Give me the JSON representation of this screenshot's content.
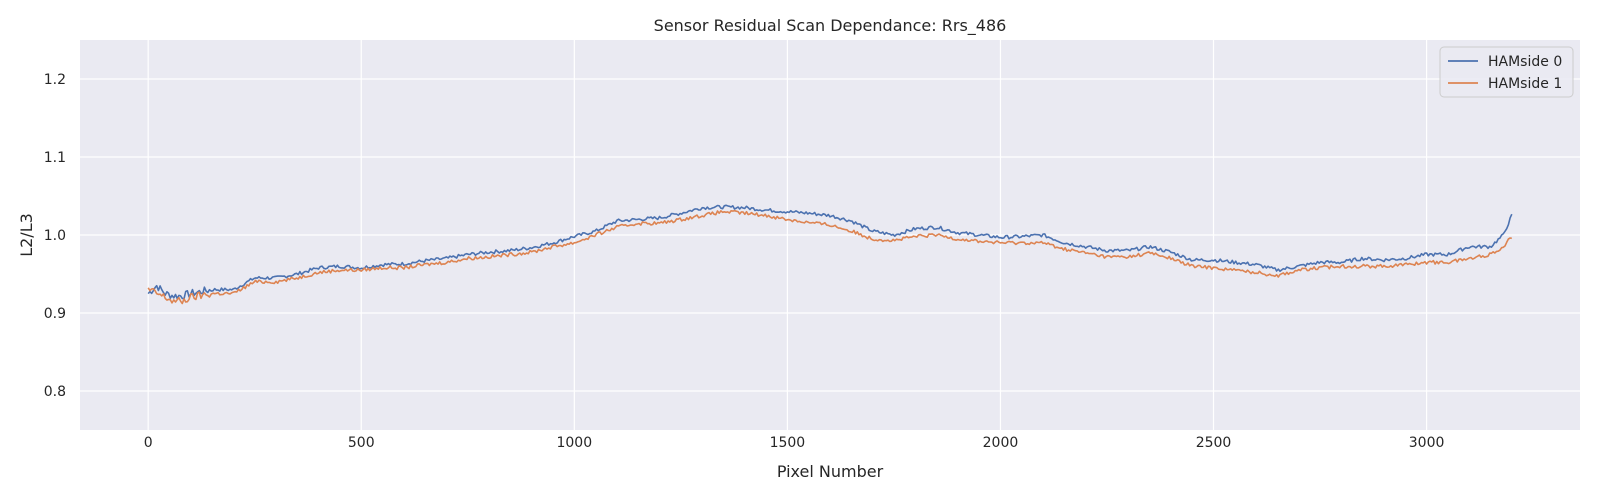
{
  "chart_data": {
    "type": "line",
    "title": "Sensor Residual Scan Dependance: Rrs_486",
    "xlabel": "Pixel Number",
    "ylabel": "L2/L3",
    "xlim": [
      -160,
      3360
    ],
    "ylim": [
      0.75,
      1.25
    ],
    "xticks": [
      0,
      500,
      1000,
      1500,
      2000,
      2500,
      3000
    ],
    "yticks": [
      0.8,
      0.9,
      1.0,
      1.1,
      1.2
    ],
    "xtick_labels": [
      "0",
      "500",
      "1000",
      "1500",
      "2000",
      "2500",
      "3000"
    ],
    "ytick_labels": [
      "0.8",
      "0.9",
      "1.0",
      "1.1",
      "1.2"
    ],
    "grid": true,
    "legend_position": "top-right",
    "colors": {
      "background": "#eaeaf2",
      "grid": "#ffffff",
      "series0": "#4c72b0",
      "series1": "#dd8452"
    },
    "series": [
      {
        "name": "HAMside 0",
        "color": "#4c72b0",
        "x": [
          0,
          20,
          40,
          60,
          80,
          100,
          150,
          200,
          250,
          300,
          350,
          400,
          450,
          500,
          550,
          600,
          650,
          700,
          750,
          800,
          850,
          900,
          950,
          1000,
          1050,
          1100,
          1150,
          1200,
          1250,
          1300,
          1350,
          1400,
          1450,
          1500,
          1550,
          1600,
          1650,
          1700,
          1750,
          1800,
          1850,
          1900,
          1950,
          2000,
          2050,
          2100,
          2150,
          2200,
          2250,
          2300,
          2350,
          2400,
          2450,
          2500,
          2550,
          2600,
          2650,
          2700,
          2750,
          2800,
          2850,
          2900,
          2950,
          3000,
          3050,
          3100,
          3150,
          3180,
          3200
        ],
        "y": [
          0.925,
          0.935,
          0.925,
          0.922,
          0.922,
          0.925,
          0.93,
          0.93,
          0.945,
          0.945,
          0.95,
          0.958,
          0.96,
          0.958,
          0.962,
          0.963,
          0.967,
          0.97,
          0.975,
          0.978,
          0.98,
          0.984,
          0.99,
          0.998,
          1.005,
          1.018,
          1.02,
          1.022,
          1.028,
          1.035,
          1.036,
          1.035,
          1.032,
          1.03,
          1.028,
          1.025,
          1.018,
          1.005,
          1.0,
          1.008,
          1.01,
          1.003,
          1.0,
          0.997,
          0.998,
          1.0,
          0.99,
          0.985,
          0.98,
          0.98,
          0.985,
          0.978,
          0.968,
          0.968,
          0.965,
          0.962,
          0.955,
          0.96,
          0.965,
          0.965,
          0.97,
          0.968,
          0.97,
          0.975,
          0.975,
          0.985,
          0.985,
          1.0,
          1.025
        ]
      },
      {
        "name": "HAMside 1",
        "color": "#dd8452",
        "x": [
          0,
          20,
          40,
          60,
          80,
          100,
          150,
          200,
          250,
          300,
          350,
          400,
          450,
          500,
          550,
          600,
          650,
          700,
          750,
          800,
          850,
          900,
          950,
          1000,
          1050,
          1100,
          1150,
          1200,
          1250,
          1300,
          1350,
          1400,
          1450,
          1500,
          1550,
          1600,
          1650,
          1700,
          1750,
          1800,
          1850,
          1900,
          1950,
          2000,
          2050,
          2100,
          2150,
          2200,
          2250,
          2300,
          2350,
          2400,
          2450,
          2500,
          2550,
          2600,
          2650,
          2700,
          2750,
          2800,
          2850,
          2900,
          2950,
          3000,
          3050,
          3100,
          3150,
          3180,
          3200
        ],
        "y": [
          0.93,
          0.925,
          0.92,
          0.915,
          0.915,
          0.92,
          0.925,
          0.925,
          0.94,
          0.94,
          0.945,
          0.952,
          0.955,
          0.955,
          0.958,
          0.958,
          0.962,
          0.965,
          0.97,
          0.972,
          0.975,
          0.978,
          0.985,
          0.99,
          1.0,
          1.01,
          1.015,
          1.015,
          1.02,
          1.025,
          1.03,
          1.028,
          1.025,
          1.02,
          1.016,
          1.013,
          1.005,
          0.995,
          0.993,
          0.998,
          1.0,
          0.995,
          0.992,
          0.99,
          0.99,
          0.99,
          0.982,
          0.977,
          0.972,
          0.972,
          0.977,
          0.97,
          0.96,
          0.958,
          0.955,
          0.952,
          0.948,
          0.955,
          0.958,
          0.96,
          0.96,
          0.96,
          0.962,
          0.965,
          0.965,
          0.97,
          0.975,
          0.985,
          0.998
        ]
      }
    ]
  }
}
